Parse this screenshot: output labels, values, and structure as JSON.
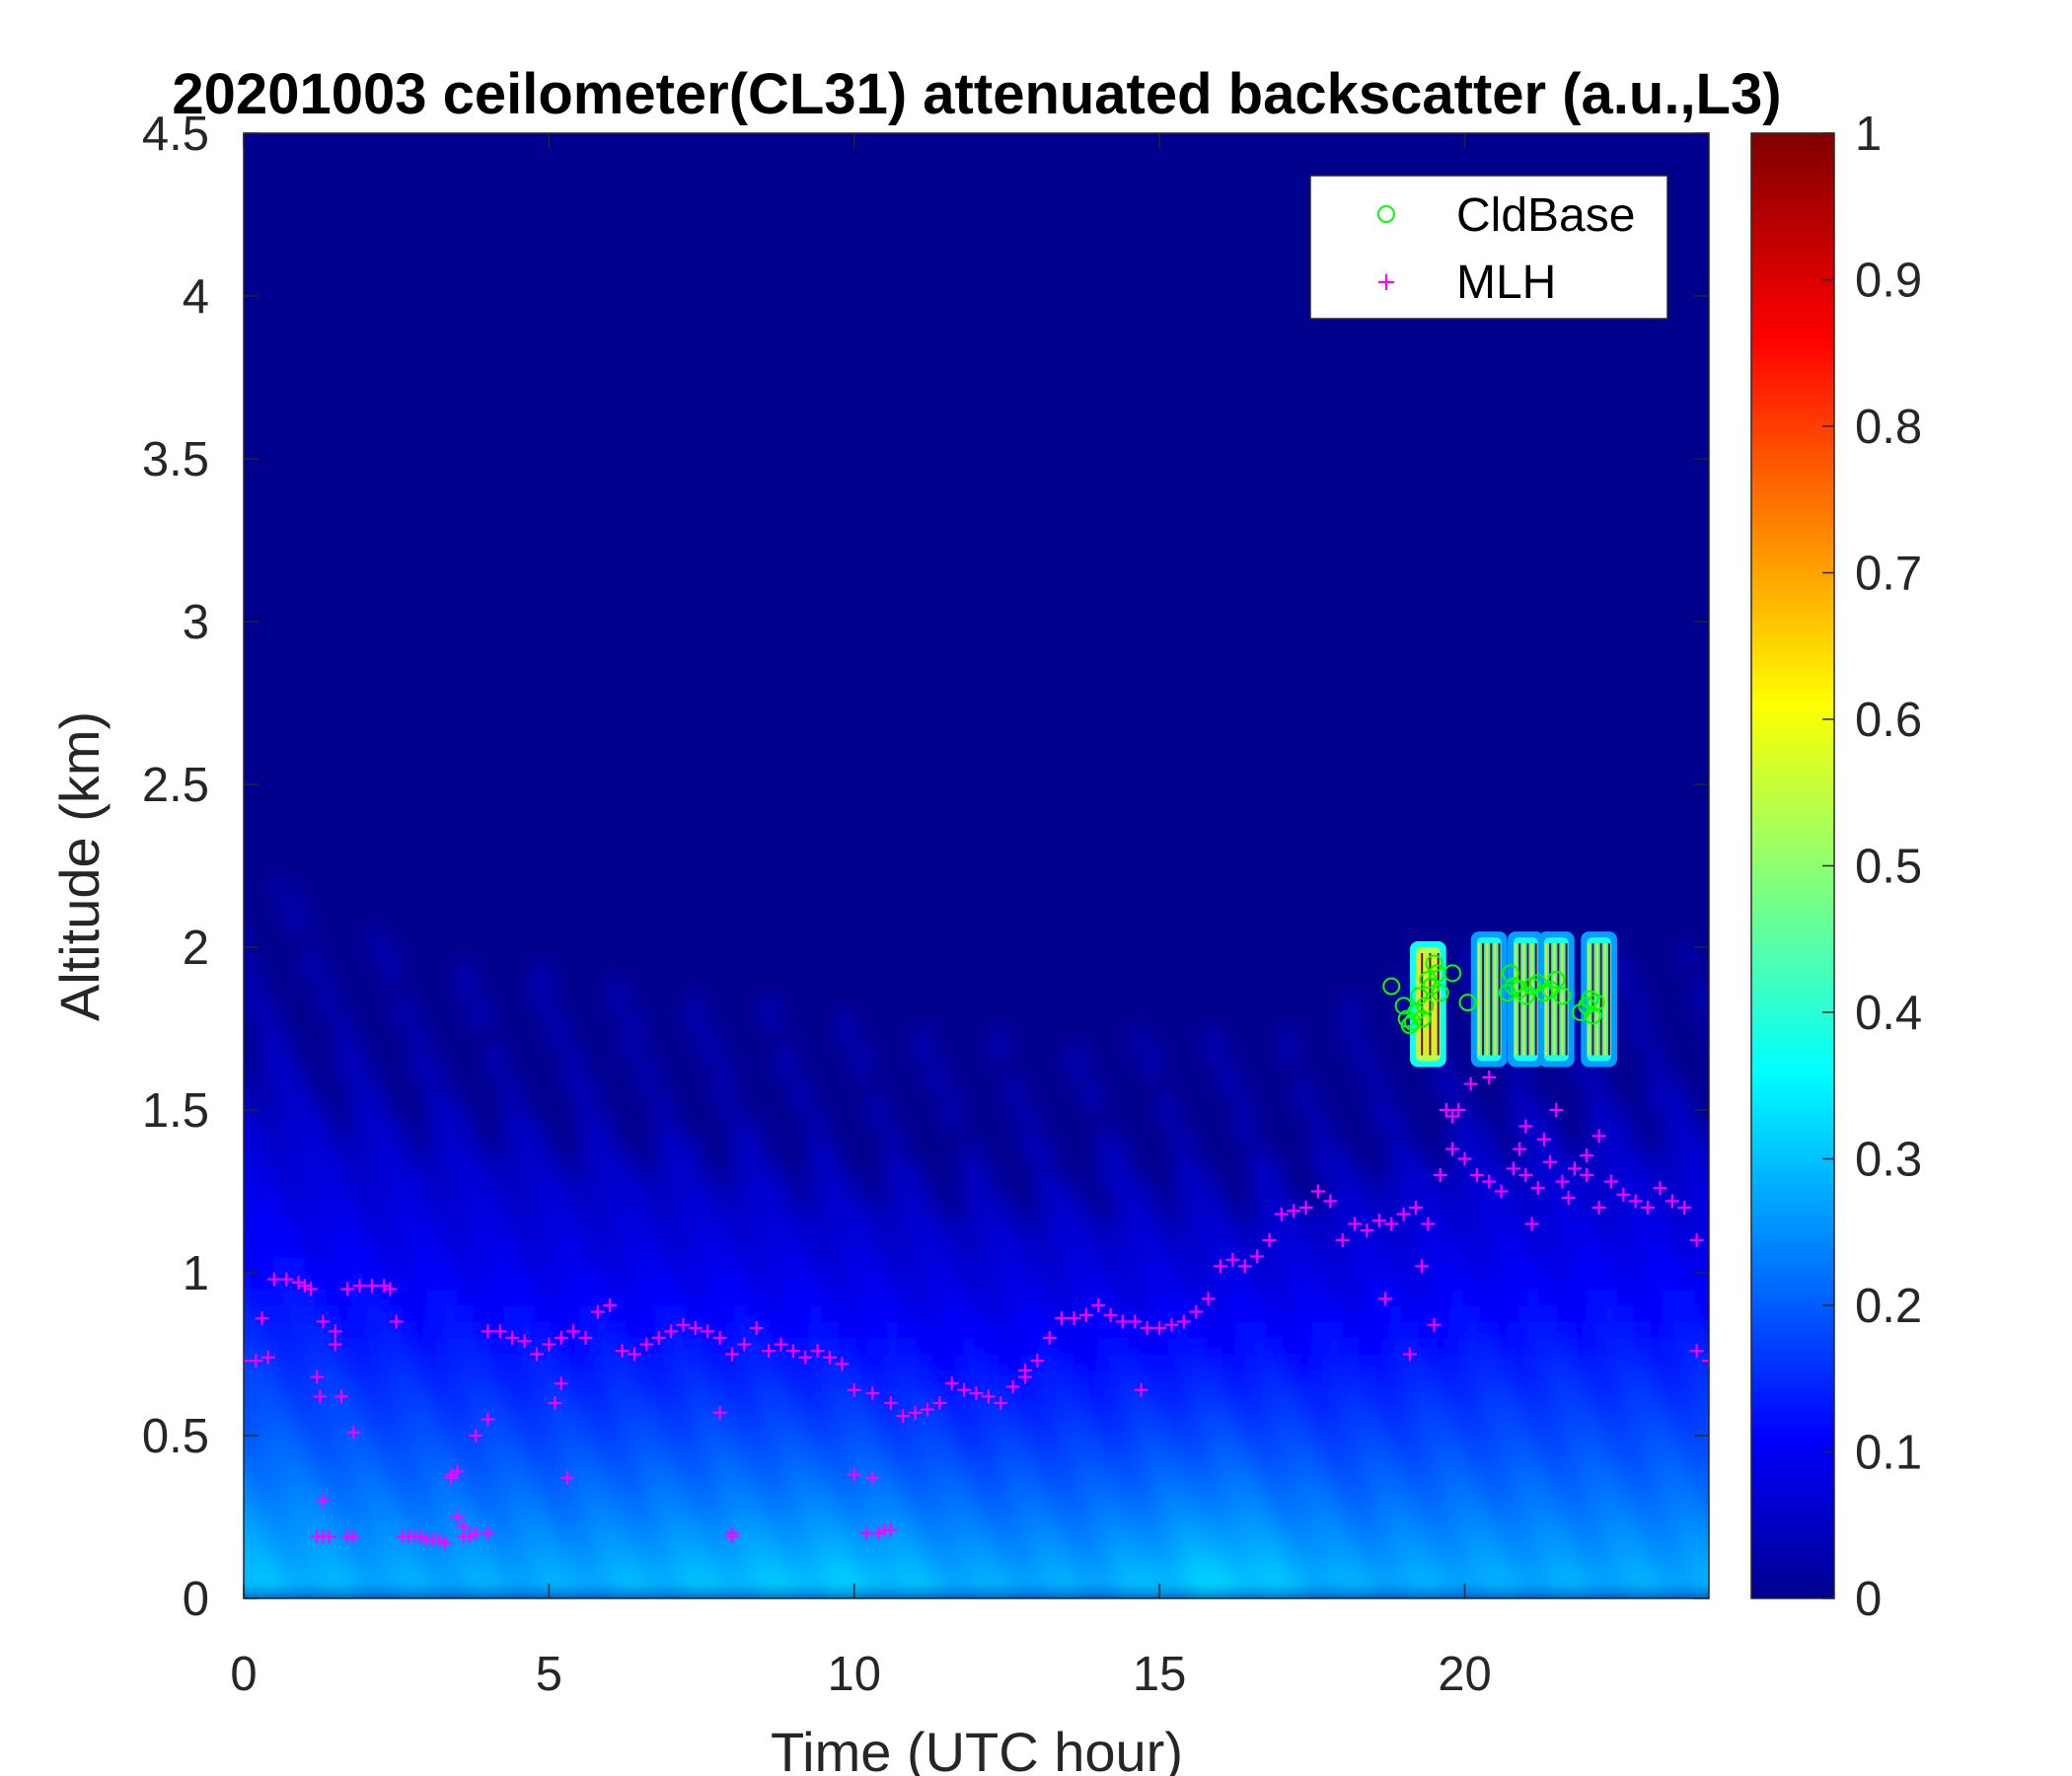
{
  "chart_data": {
    "type": "heatmap",
    "title": "20201003 ceilometer(CL31) attenuated backscatter (a.u.,L3)",
    "xlabel": "Time (UTC hour)",
    "ylabel": "Altitude (km)",
    "xlim": [
      0,
      24
    ],
    "ylim": [
      0,
      4.5
    ],
    "x_ticks": [
      0,
      5,
      10,
      15,
      20
    ],
    "x_tick_labels": [
      "0",
      "5",
      "10",
      "15",
      "20"
    ],
    "y_ticks": [
      0,
      0.5,
      1,
      1.5,
      2,
      2.5,
      3,
      3.5,
      4,
      4.5
    ],
    "y_tick_labels": [
      "0",
      "0.5",
      "1",
      "1.5",
      "2",
      "2.5",
      "3",
      "3.5",
      "4",
      "4.5"
    ],
    "colorbar": {
      "colormap": "jet",
      "range": [
        0,
        1
      ],
      "ticks": [
        0,
        0.1,
        0.2,
        0.3,
        0.4,
        0.5,
        0.6,
        0.7,
        0.8,
        0.9,
        1
      ],
      "tick_labels": [
        "0",
        "0.1",
        "0.2",
        "0.3",
        "0.4",
        "0.5",
        "0.6",
        "0.7",
        "0.8",
        "0.9",
        "1"
      ]
    },
    "legend": {
      "placement": "top-right",
      "entries": [
        {
          "label": "CldBase",
          "marker": "circle",
          "color": "#00ff00"
        },
        {
          "label": "MLH",
          "marker": "plus",
          "color": "#ff00ff"
        }
      ]
    },
    "backscatter_profile": {
      "description_levels": [
        {
          "t": 0,
          "top": 1.9,
          "surface": 0.32
        },
        {
          "t": 2,
          "top": 1.75,
          "surface": 0.3
        },
        {
          "t": 5,
          "top": 1.6,
          "surface": 0.3
        },
        {
          "t": 8,
          "top": 1.55,
          "surface": 0.32
        },
        {
          "t": 10,
          "top": 1.45,
          "surface": 0.33
        },
        {
          "t": 12,
          "top": 1.4,
          "surface": 0.3
        },
        {
          "t": 14,
          "top": 1.45,
          "surface": 0.3
        },
        {
          "t": 16,
          "top": 1.4,
          "surface": 0.34
        },
        {
          "t": 18,
          "top": 1.5,
          "surface": 0.3
        },
        {
          "t": 20,
          "top": 1.65,
          "surface": 0.3
        },
        {
          "t": 22,
          "top": 1.7,
          "surface": 0.3
        },
        {
          "t": 24,
          "top": 1.7,
          "surface": 0.3
        }
      ],
      "cloud_blocks": [
        {
          "t0": 19.2,
          "t1": 19.6,
          "bottom": 1.65,
          "top": 2.0,
          "value": 0.55
        },
        {
          "t0": 20.2,
          "t1": 20.6,
          "bottom": 1.65,
          "top": 2.03,
          "value": 0.4
        },
        {
          "t0": 20.8,
          "t1": 21.2,
          "bottom": 1.65,
          "top": 2.03,
          "value": 0.4
        },
        {
          "t0": 21.3,
          "t1": 21.7,
          "bottom": 1.65,
          "top": 2.03,
          "value": 0.4
        },
        {
          "t0": 22.0,
          "t1": 22.4,
          "bottom": 1.65,
          "top": 2.03,
          "value": 0.4
        }
      ]
    },
    "series": [
      {
        "name": "MLH",
        "marker": "plus",
        "x": [
          0.0,
          0.2,
          0.4,
          0.5,
          0.7,
          0.9,
          1.0,
          1.1,
          1.3,
          1.5,
          1.7,
          1.9,
          2.1,
          2.3,
          2.4,
          4.0,
          4.2,
          4.4,
          4.6,
          4.8,
          5.0,
          5.2,
          5.4,
          5.6,
          5.8,
          6.0,
          6.2,
          6.4,
          6.6,
          6.8,
          7.0,
          7.2,
          7.4,
          7.6,
          7.8,
          8.0,
          8.2,
          8.4,
          8.6,
          8.8,
          9.0,
          9.2,
          9.4,
          9.6,
          9.8,
          10.0,
          10.3,
          10.6,
          10.8,
          11.0,
          11.2,
          11.4,
          11.6,
          11.8,
          12.0,
          12.2,
          12.4,
          12.6,
          12.8,
          13.0,
          13.2,
          13.4,
          13.6,
          13.8,
          14.0,
          14.2,
          14.4,
          14.6,
          14.8,
          15.0,
          15.2,
          15.4,
          15.6,
          15.8,
          16.0,
          16.2,
          16.4,
          16.6,
          16.8,
          17.0,
          17.2,
          17.4,
          17.6,
          17.8,
          18.0,
          18.2,
          18.4,
          18.6,
          18.8,
          19.0,
          19.2,
          19.4,
          19.6,
          19.8,
          20.0,
          20.2,
          20.4,
          20.6,
          20.8,
          21.0,
          21.2,
          21.4,
          21.6,
          21.8,
          22.0,
          22.2,
          22.4,
          22.6,
          22.8,
          23.0,
          23.2,
          23.4,
          23.6,
          23.8,
          24.0
        ],
        "y": [
          0.73,
          0.73,
          0.74,
          0.98,
          0.98,
          0.97,
          0.96,
          0.95,
          0.85,
          0.78,
          0.95,
          0.96,
          0.96,
          0.96,
          0.95,
          0.82,
          0.82,
          0.8,
          0.79,
          0.75,
          0.78,
          0.8,
          0.82,
          0.8,
          0.88,
          0.9,
          0.76,
          0.75,
          0.78,
          0.8,
          0.82,
          0.84,
          0.83,
          0.82,
          0.8,
          0.75,
          0.78,
          0.83,
          0.76,
          0.78,
          0.76,
          0.74,
          0.76,
          0.74,
          0.72,
          0.64,
          0.63,
          0.6,
          0.56,
          0.57,
          0.58,
          0.6,
          0.66,
          0.64,
          0.63,
          0.62,
          0.6,
          0.65,
          0.68,
          0.73,
          0.8,
          0.86,
          0.86,
          0.87,
          0.9,
          0.87,
          0.85,
          0.85,
          0.83,
          0.83,
          0.84,
          0.85,
          0.88,
          0.92,
          1.02,
          1.04,
          1.02,
          1.05,
          1.1,
          1.18,
          1.19,
          1.2,
          1.25,
          1.22,
          1.1,
          1.15,
          1.13,
          1.16,
          1.15,
          1.18,
          1.2,
          1.15,
          1.3,
          1.38,
          1.35,
          1.3,
          1.28,
          1.25,
          1.32,
          1.3,
          1.26,
          1.34,
          1.28,
          1.32,
          1.3,
          1.2,
          1.28,
          1.24,
          1.22,
          1.2,
          1.26,
          1.22,
          1.2,
          0.76,
          0.73
        ]
      },
      {
        "name": "MLH_scatter",
        "marker": "plus",
        "x": [
          0.3,
          1.2,
          1.25,
          1.3,
          1.5,
          1.6,
          1.8,
          2.5,
          3.4,
          3.5,
          3.6,
          3.8,
          4.0,
          5.1,
          5.2,
          5.3,
          7.8,
          8.0,
          10.0,
          10.3,
          12.8,
          14.7,
          18.7,
          19.1,
          19.3,
          19.5,
          19.7,
          19.9,
          20.1,
          20.4,
          20.9,
          21.1,
          21.3,
          21.5,
          21.7,
          22.0,
          22.2,
          19.8,
          21.0,
          23.8
        ],
        "y": [
          0.86,
          0.68,
          0.62,
          0.3,
          0.82,
          0.62,
          0.51,
          0.85,
          0.38,
          0.25,
          0.22,
          0.5,
          0.55,
          0.6,
          0.66,
          0.37,
          0.57,
          0.2,
          0.38,
          0.37,
          0.7,
          0.64,
          0.92,
          0.75,
          1.02,
          0.84,
          1.5,
          1.5,
          1.58,
          1.6,
          1.38,
          1.15,
          1.41,
          1.5,
          1.23,
          1.36,
          1.42,
          1.48,
          1.45,
          1.1
        ]
      },
      {
        "name": "MLH_low",
        "marker": "plus",
        "x": [
          1.2,
          1.3,
          1.4,
          1.7,
          1.8,
          2.6,
          2.7,
          2.8,
          2.9,
          3.0,
          3.1,
          3.2,
          3.3,
          3.6,
          3.7,
          3.8,
          4.0,
          8.0,
          10.2,
          10.4,
          10.5,
          10.6,
          3.4,
          3.5
        ],
        "y": [
          0.19,
          0.19,
          0.19,
          0.19,
          0.19,
          0.19,
          0.19,
          0.19,
          0.19,
          0.18,
          0.18,
          0.18,
          0.17,
          0.19,
          0.19,
          0.2,
          0.2,
          0.19,
          0.2,
          0.2,
          0.21,
          0.21,
          0.37,
          0.39
        ]
      },
      {
        "name": "CldBase",
        "marker": "circle",
        "x": [
          18.8,
          19.0,
          19.05,
          19.1,
          19.15,
          19.2,
          19.25,
          19.3,
          19.35,
          19.4,
          19.45,
          19.5,
          19.55,
          19.6,
          19.8,
          20.05,
          20.7,
          20.75,
          20.8,
          20.9,
          21.0,
          21.1,
          21.2,
          21.3,
          21.4,
          21.5,
          21.6,
          21.9,
          22.0,
          22.05,
          22.1,
          22.15
        ],
        "y": [
          1.88,
          1.82,
          1.78,
          1.76,
          1.77,
          1.8,
          1.85,
          1.78,
          1.82,
          1.9,
          1.88,
          1.95,
          1.92,
          1.86,
          1.92,
          1.83,
          1.86,
          1.92,
          1.88,
          1.87,
          1.85,
          1.88,
          1.89,
          1.86,
          1.87,
          1.9,
          1.85,
          1.8,
          1.82,
          1.84,
          1.79,
          1.83
        ]
      }
    ]
  }
}
